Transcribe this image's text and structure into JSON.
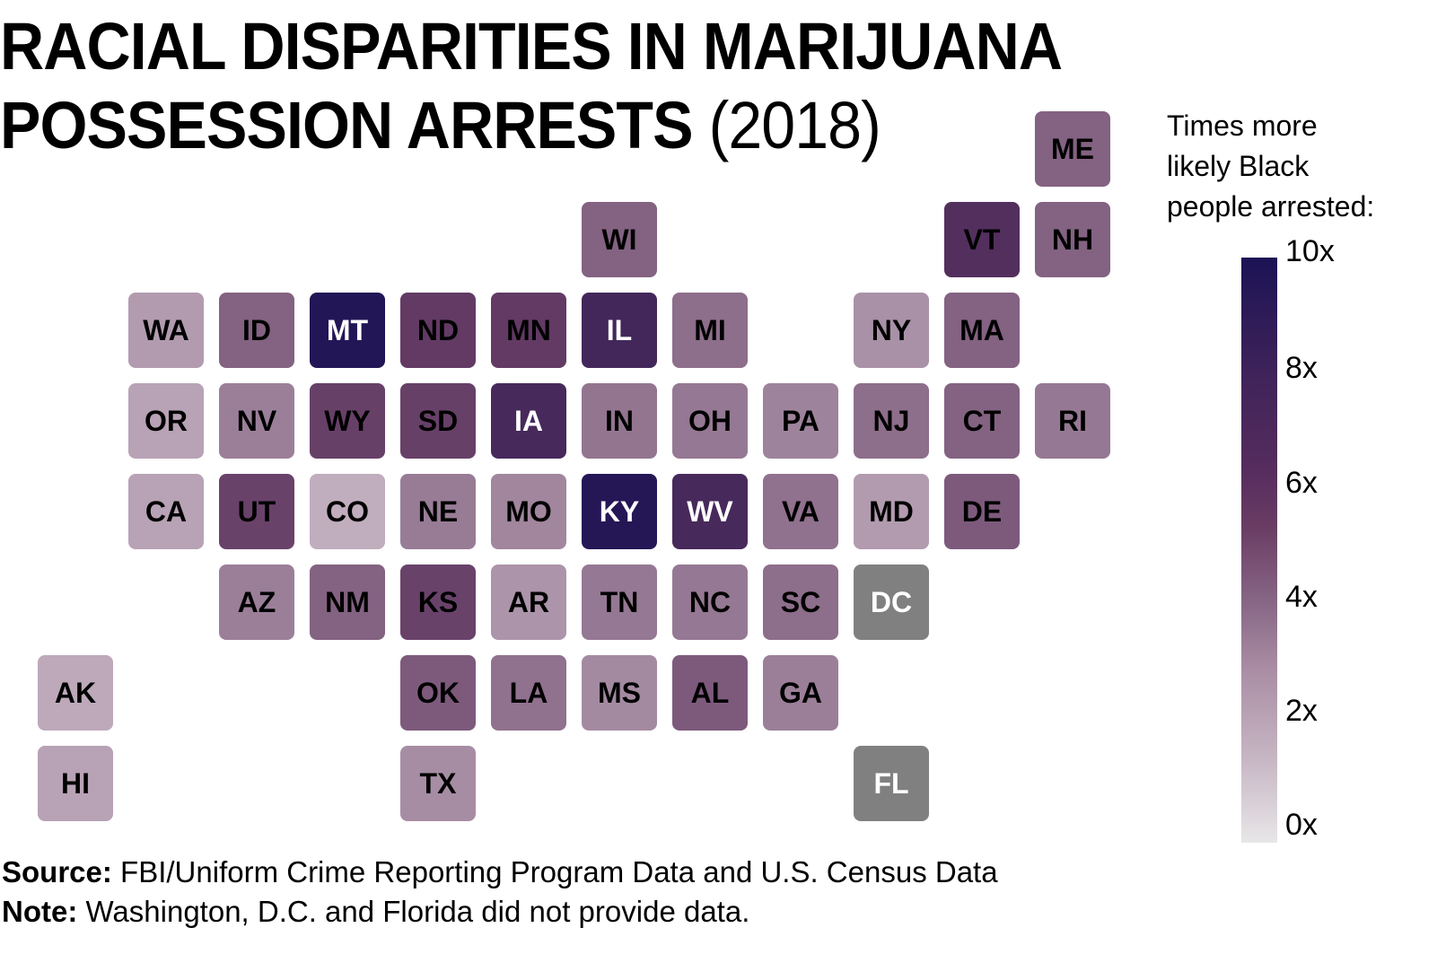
{
  "title": {
    "line1": "RACIAL DISPARITIES IN MARIJUANA",
    "line2_bold": "POSSESSION ARRESTS",
    "line2_year": "(2018)"
  },
  "legend": {
    "title_lines": [
      "Times more",
      "likely Black",
      "people arrested:"
    ],
    "ticks": [
      "10x",
      "8x",
      "6x",
      "4x",
      "2x",
      "0x"
    ],
    "tick_values": [
      10,
      8,
      6,
      4,
      2,
      0
    ],
    "colors": {
      "0": "#e8e6e8",
      "2": "#c3b0c0",
      "4": "#8a6a88",
      "6": "#5e3560",
      "8": "#3a2258",
      "10": "#1c1355"
    },
    "no_data_color": "#808080"
  },
  "footer": {
    "source_label": "Source:",
    "source_text": "FBI/Uniform Crime Reporting Program Data and U.S. Census Data",
    "note_label": "Note:",
    "note_text": "Washington, D.C. and Florida did not provide data."
  },
  "chart_data": {
    "type": "heatmap",
    "subtype": "tile-grid-map",
    "title": "RACIAL DISPARITIES IN MARIJUANA POSSESSION ARRESTS (2018)",
    "value_label": "Times more likely Black people arrested",
    "scale_range": [
      0,
      10
    ],
    "legend_placement": "right",
    "tiles": [
      {
        "state": "ME",
        "row": 0,
        "col": 11,
        "value": 4.3
      },
      {
        "state": "WI",
        "row": 1,
        "col": 6,
        "value": 4.3
      },
      {
        "state": "VT",
        "row": 1,
        "col": 10,
        "value": 6.6
      },
      {
        "state": "NH",
        "row": 1,
        "col": 11,
        "value": 4.3
      },
      {
        "state": "WA",
        "row": 2,
        "col": 1,
        "value": 2.6
      },
      {
        "state": "ID",
        "row": 2,
        "col": 2,
        "value": 4.3
      },
      {
        "state": "MT",
        "row": 2,
        "col": 3,
        "value": 9.6
      },
      {
        "state": "ND",
        "row": 2,
        "col": 4,
        "value": 5.8
      },
      {
        "state": "MN",
        "row": 2,
        "col": 5,
        "value": 5.8
      },
      {
        "state": "IL",
        "row": 2,
        "col": 6,
        "value": 7.5
      },
      {
        "state": "MI",
        "row": 2,
        "col": 7,
        "value": 3.9
      },
      {
        "state": "NY",
        "row": 2,
        "col": 9,
        "value": 2.9
      },
      {
        "state": "MA",
        "row": 2,
        "col": 10,
        "value": 4.3
      },
      {
        "state": "OR",
        "row": 3,
        "col": 1,
        "value": 2.4
      },
      {
        "state": "NV",
        "row": 3,
        "col": 2,
        "value": 3.4
      },
      {
        "state": "WY",
        "row": 3,
        "col": 3,
        "value": 5.6
      },
      {
        "state": "SD",
        "row": 3,
        "col": 4,
        "value": 5.6
      },
      {
        "state": "IA",
        "row": 3,
        "col": 5,
        "value": 7.3
      },
      {
        "state": "IN",
        "row": 3,
        "col": 6,
        "value": 3.7
      },
      {
        "state": "OH",
        "row": 3,
        "col": 7,
        "value": 3.6
      },
      {
        "state": "PA",
        "row": 3,
        "col": 8,
        "value": 3.3
      },
      {
        "state": "NJ",
        "row": 3,
        "col": 9,
        "value": 3.9
      },
      {
        "state": "CT",
        "row": 3,
        "col": 10,
        "value": 4.3
      },
      {
        "state": "RI",
        "row": 3,
        "col": 11,
        "value": 3.6
      },
      {
        "state": "CA",
        "row": 4,
        "col": 1,
        "value": 2.4
      },
      {
        "state": "UT",
        "row": 4,
        "col": 2,
        "value": 5.5
      },
      {
        "state": "CO",
        "row": 4,
        "col": 3,
        "value": 2.1
      },
      {
        "state": "NE",
        "row": 4,
        "col": 4,
        "value": 3.5
      },
      {
        "state": "MO",
        "row": 4,
        "col": 5,
        "value": 3.2
      },
      {
        "state": "KY",
        "row": 4,
        "col": 6,
        "value": 9.4
      },
      {
        "state": "WV",
        "row": 4,
        "col": 7,
        "value": 7.3
      },
      {
        "state": "VA",
        "row": 4,
        "col": 8,
        "value": 3.8
      },
      {
        "state": "MD",
        "row": 4,
        "col": 9,
        "value": 2.6
      },
      {
        "state": "DE",
        "row": 4,
        "col": 10,
        "value": 4.6
      },
      {
        "state": "AZ",
        "row": 5,
        "col": 2,
        "value": 3.4
      },
      {
        "state": "NM",
        "row": 5,
        "col": 3,
        "value": 4.3
      },
      {
        "state": "KS",
        "row": 5,
        "col": 4,
        "value": 5.5
      },
      {
        "state": "AR",
        "row": 5,
        "col": 5,
        "value": 2.8
      },
      {
        "state": "TN",
        "row": 5,
        "col": 6,
        "value": 3.6
      },
      {
        "state": "NC",
        "row": 5,
        "col": 7,
        "value": 3.6
      },
      {
        "state": "SC",
        "row": 5,
        "col": 8,
        "value": 3.9
      },
      {
        "state": "DC",
        "row": 5,
        "col": 9,
        "value": null
      },
      {
        "state": "AK",
        "row": 6,
        "col": 0,
        "value": 2.2
      },
      {
        "state": "OK",
        "row": 6,
        "col": 4,
        "value": 4.6
      },
      {
        "state": "LA",
        "row": 6,
        "col": 5,
        "value": 3.8
      },
      {
        "state": "MS",
        "row": 6,
        "col": 6,
        "value": 3.1
      },
      {
        "state": "AL",
        "row": 6,
        "col": 7,
        "value": 4.6
      },
      {
        "state": "GA",
        "row": 6,
        "col": 8,
        "value": 3.4
      },
      {
        "state": "HI",
        "row": 7,
        "col": 0,
        "value": 2.4
      },
      {
        "state": "TX",
        "row": 7,
        "col": 4,
        "value": 3.0
      },
      {
        "state": "FL",
        "row": 7,
        "col": 9,
        "value": null
      }
    ]
  }
}
